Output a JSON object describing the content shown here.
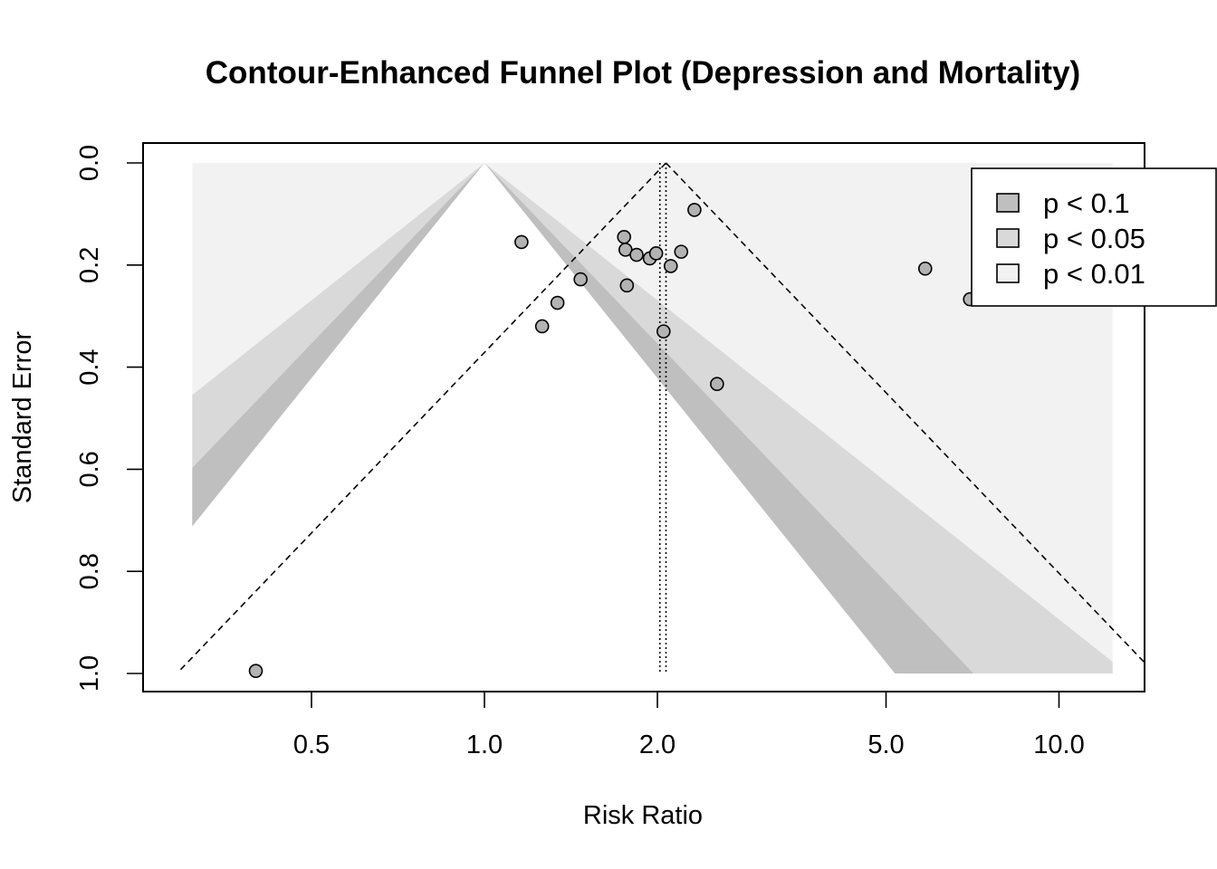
{
  "chart_data": {
    "type": "scatter",
    "title": "Contour-Enhanced Funnel Plot (Depression and Mortality)",
    "xlabel": "Risk Ratio",
    "ylabel": "Standard Error",
    "x_scale": "log",
    "x_ticks": [
      0.5,
      1.0,
      2.0,
      5.0,
      10.0
    ],
    "x_tick_labels": [
      "0.5",
      "1.0",
      "2.0",
      "5.0",
      "10.0"
    ],
    "xlim": [
      0.3,
      13.5
    ],
    "y_ticks": [
      0.0,
      0.2,
      0.4,
      0.6,
      0.8,
      1.0
    ],
    "y_tick_labels": [
      "0.0",
      "0.2",
      "0.4",
      "0.6",
      "0.8",
      "1.0"
    ],
    "ylim": [
      1.0,
      0.0
    ],
    "y_reversed": true,
    "grid": false,
    "contour_reference": 1.0,
    "pooled_estimates": [
      2.02,
      2.07
    ],
    "legend": {
      "placement": "top-right",
      "entries": [
        {
          "label": "p < 0.1",
          "color": "#bfbfbf"
        },
        {
          "label": "p < 0.05",
          "color": "#d9d9d9"
        },
        {
          "label": "p < 0.01",
          "color": "#f2f2f2"
        }
      ]
    },
    "colors": {
      "point_fill": "#b3b3b3",
      "band_p10": "#bfbfbf",
      "band_p05": "#d9d9d9",
      "band_p01": "#f2f2f2"
    },
    "points": [
      {
        "x": 0.4,
        "y": 0.995
      },
      {
        "x": 1.16,
        "y": 0.155
      },
      {
        "x": 1.26,
        "y": 0.32
      },
      {
        "x": 1.34,
        "y": 0.274
      },
      {
        "x": 1.47,
        "y": 0.228
      },
      {
        "x": 1.75,
        "y": 0.145
      },
      {
        "x": 1.76,
        "y": 0.17
      },
      {
        "x": 1.77,
        "y": 0.24
      },
      {
        "x": 1.84,
        "y": 0.18
      },
      {
        "x": 1.94,
        "y": 0.187
      },
      {
        "x": 1.99,
        "y": 0.177
      },
      {
        "x": 2.05,
        "y": 0.33
      },
      {
        "x": 2.11,
        "y": 0.202
      },
      {
        "x": 2.2,
        "y": 0.174
      },
      {
        "x": 2.32,
        "y": 0.092
      },
      {
        "x": 2.54,
        "y": 0.433
      },
      {
        "x": 5.85,
        "y": 0.207
      },
      {
        "x": 7.0,
        "y": 0.267
      }
    ]
  }
}
